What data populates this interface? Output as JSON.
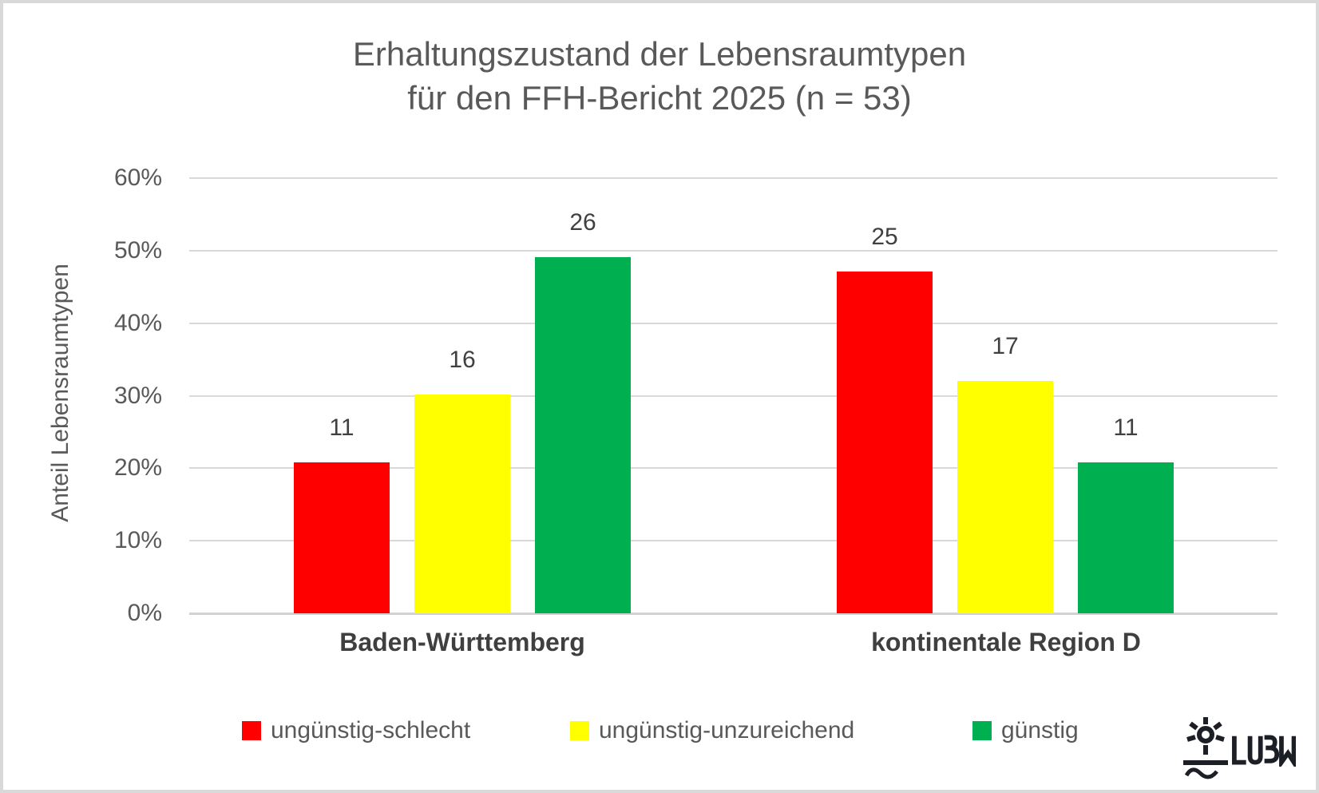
{
  "frame": {
    "border_color": "#d9d9d9",
    "background": "#ffffff"
  },
  "chart_data": {
    "type": "bar",
    "title_line1": "Erhaltungszustand der Lebensraumtypen",
    "title_line2": "für den FFH-Bericht 2025 (n = 53)",
    "ylabel": "Anteil Lebensraumtypen",
    "xlabel": "",
    "y_ticks": [
      "0%",
      "10%",
      "20%",
      "30%",
      "40%",
      "50%",
      "60%"
    ],
    "ylim": [
      0,
      60
    ],
    "grid": "horizontal",
    "legend_position": "bottom",
    "n_total": 53,
    "categories": [
      "Baden-Württemberg",
      "kontinentale Region D"
    ],
    "series": [
      {
        "name": "ungünstig-schlecht",
        "color": "#ff0000",
        "values": [
          11,
          25
        ],
        "percent": [
          20.8,
          47.2
        ]
      },
      {
        "name": "ungünstig-unzureichend",
        "color": "#ffff00",
        "values": [
          16,
          17
        ],
        "percent": [
          30.2,
          32.1
        ]
      },
      {
        "name": "günstig",
        "color": "#00b050",
        "values": [
          26,
          11
        ],
        "percent": [
          49.1,
          20.8
        ]
      }
    ],
    "value_labels": "counts shown above bars; bar heights are count/53 in percent"
  },
  "colors": {
    "title_text": "#595959",
    "axis_text": "#595959",
    "value_label_text": "#404040",
    "category_text": "#3f3f3f",
    "gridline": "#d9d9d9"
  },
  "logo": {
    "name": "LUBW",
    "wordmark": "LUBW"
  }
}
